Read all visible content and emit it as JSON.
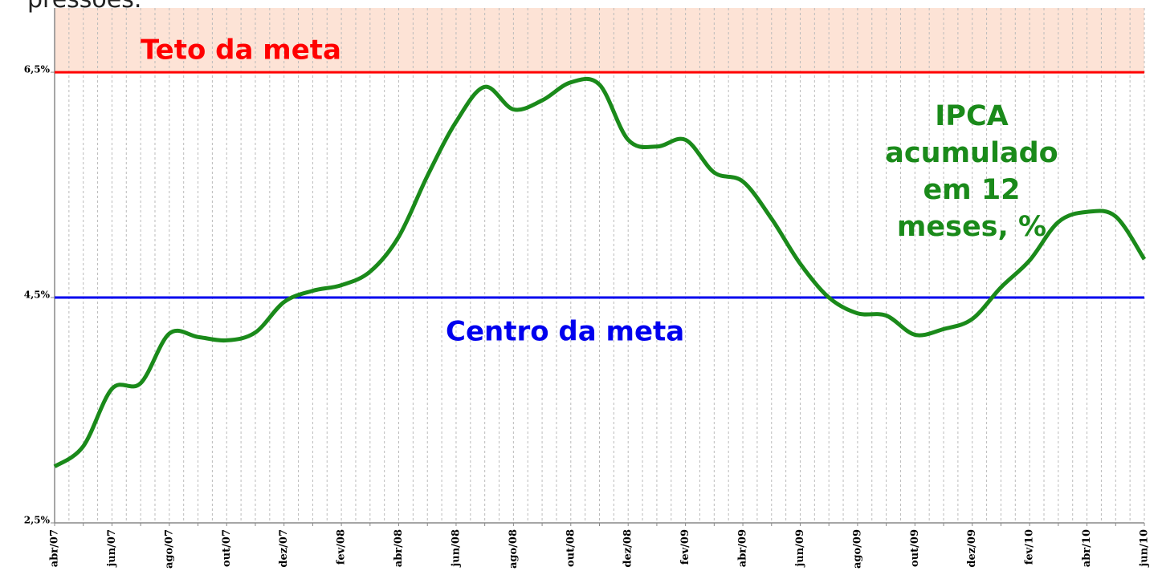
{
  "header_text": "pressões.",
  "chart_data": {
    "type": "line",
    "categories": [
      "abr/07",
      null,
      "jun/07",
      null,
      "ago/07",
      null,
      "out/07",
      null,
      "dez/07",
      null,
      "fev/08",
      null,
      "abr/08",
      null,
      "jun/08",
      null,
      "ago/08",
      null,
      "out/08",
      null,
      "dez/08",
      null,
      "fev/09",
      null,
      "abr/09",
      null,
      "jun/09",
      null,
      "ago/09",
      null,
      "out/09",
      null,
      "dez/09",
      null,
      "fev/10",
      null,
      "abr/10",
      null,
      "jun/10"
    ],
    "series": [
      {
        "name": "IPCA acumulado em 12 meses, %",
        "color": "#1a8a1a",
        "values": [
          3.0,
          3.18,
          3.69,
          3.74,
          4.18,
          4.15,
          4.12,
          4.19,
          4.46,
          4.56,
          4.61,
          4.73,
          5.04,
          5.58,
          6.06,
          6.37,
          6.17,
          6.25,
          6.41,
          6.39,
          5.9,
          5.84,
          5.9,
          5.61,
          5.53,
          5.2,
          4.8,
          4.5,
          4.36,
          4.34,
          4.17,
          4.22,
          4.31,
          4.59,
          4.83,
          5.17,
          5.26,
          5.22,
          4.84
        ]
      }
    ],
    "reference_lines": [
      {
        "value": 6.5,
        "label": "Teto da meta",
        "color": "#ff0000"
      },
      {
        "value": 4.5,
        "label": "Centro da meta",
        "color": "#0000ee"
      }
    ],
    "ylim": [
      2.5,
      7.07
    ],
    "yticks": [
      {
        "value": 2.5,
        "label": "2,5%"
      },
      {
        "value": 4.5,
        "label": "4,5%"
      },
      {
        "value": 6.5,
        "label": "6,5%"
      }
    ],
    "band_color": "#fde3d6",
    "grid": true
  }
}
